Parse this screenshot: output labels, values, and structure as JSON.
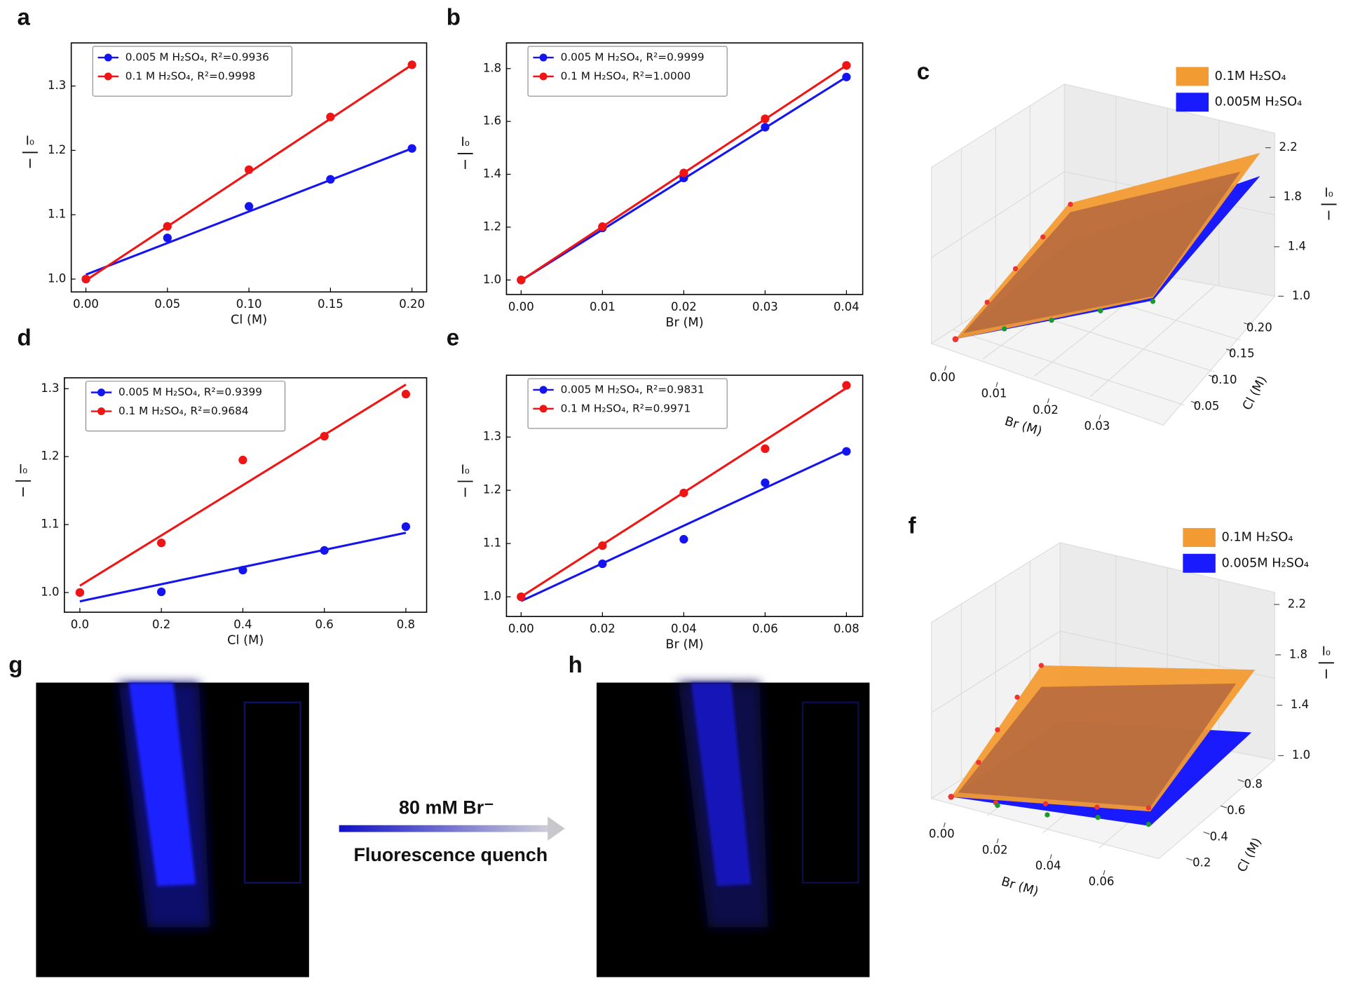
{
  "chart_data": [
    {
      "type": "scatter",
      "panel": "a",
      "xlabel": "Cl (M)",
      "ylabel_top": "I₀",
      "ylabel_bottom": "I",
      "x": [
        0,
        0.05,
        0.1,
        0.15,
        0.2
      ],
      "xlim": [
        -0.009,
        0.209
      ],
      "ylim": [
        0.98,
        1.367
      ],
      "xticks": [
        {
          "value": 0,
          "label": "0.00"
        },
        {
          "value": 0.05,
          "label": "0.05"
        },
        {
          "value": 0.1,
          "label": "0.10"
        },
        {
          "value": 0.15,
          "label": "0.15"
        },
        {
          "value": 0.2,
          "label": "0.20"
        }
      ],
      "yticks": [
        {
          "value": 1,
          "label": "1.0"
        },
        {
          "value": 1.1,
          "label": "1.1"
        },
        {
          "value": 1.2,
          "label": "1.2"
        },
        {
          "value": 1.3,
          "label": "1.3"
        }
      ],
      "legend": "upper left",
      "series": [
        {
          "name": "0.005 M H₂SO₄, R²=0.9936",
          "color": "#1414f0",
          "values": [
            1.0,
            1.064,
            1.113,
            1.155,
            1.203
          ],
          "fit": [
            1.007,
            1.203
          ]
        },
        {
          "name": "0.1 M H₂SO₄, R²=0.9998",
          "color": "#f01414",
          "values": [
            1.0,
            1.082,
            1.17,
            1.252,
            1.333
          ],
          "fit": [
            0.998,
            1.333
          ]
        }
      ]
    },
    {
      "type": "scatter",
      "panel": "b",
      "xlabel": "Br (M)",
      "ylabel_top": "I₀",
      "ylabel_bottom": "I",
      "x": [
        0,
        0.01,
        0.02,
        0.03,
        0.04
      ],
      "xlim": [
        -0.0018,
        0.042
      ],
      "ylim": [
        0.945,
        1.897
      ],
      "xticks": [
        {
          "value": 0,
          "label": "0.00"
        },
        0.01,
        0.02,
        0.03,
        0.04
      ],
      "yticks": [
        {
          "value": 1,
          "label": "1.0"
        },
        1.2,
        1.4,
        1.6,
        1.8
      ],
      "legend": "upper left",
      "series": [
        {
          "name": "0.005 M H₂SO₄, R²=0.9999",
          "color": "#1414f0",
          "values": [
            1.0,
            1.197,
            1.386,
            1.578,
            1.768
          ],
          "fit": [
            0.998,
            1.768
          ]
        },
        {
          "name": "0.1 M H₂SO₄, R²=1.0000",
          "color": "#f01414",
          "values": [
            1.0,
            1.202,
            1.405,
            1.61,
            1.812
          ],
          "fit": [
            0.998,
            1.812
          ]
        }
      ]
    },
    {
      "type": "surface3d",
      "panel": "c",
      "xlabel": "Br (M)",
      "ylabel": "Cl (M)",
      "zlabel_top": "I₀",
      "zlabel_bottom": "I",
      "xlim": [
        0,
        0.04
      ],
      "ylim": [
        0,
        0.2
      ],
      "zlim": [
        1.0,
        2.2
      ],
      "xticks": [
        {
          "value": 0,
          "label": "0.00"
        },
        0.01,
        0.02,
        0.03
      ],
      "yticks": [
        0.05,
        {
          "value": 0.1,
          "label": "0.10"
        },
        0.15,
        {
          "value": 0.2,
          "label": "0.20"
        }
      ],
      "zticks": [
        {
          "value": 1,
          "label": "1.0"
        },
        1.4,
        1.8,
        2.2
      ],
      "series": [
        {
          "name": "0.1M H₂SO₄",
          "color": "#f39b33"
        },
        {
          "name": "0.005M H₂SO₄",
          "color": "#1a1aff"
        }
      ]
    },
    {
      "type": "scatter",
      "panel": "d",
      "xlabel": "Cl (M)",
      "ylabel_top": "I₀",
      "ylabel_bottom": "I",
      "x": [
        0,
        0.2,
        0.4,
        0.6,
        0.8
      ],
      "xlim": [
        -0.038,
        0.851
      ],
      "ylim": [
        0.971,
        1.316
      ],
      "xticks": [
        {
          "value": 0,
          "label": "0.0"
        },
        0.2,
        0.4,
        0.6,
        0.8
      ],
      "yticks": [
        {
          "value": 1,
          "label": "1.0"
        },
        1.1,
        1.2,
        1.3
      ],
      "legend": "upper left",
      "series": [
        {
          "name": "0.005 M H₂SO₄, R²=0.9399",
          "color": "#1414f0",
          "values": [
            1.0,
            1.001,
            1.033,
            1.062,
            1.097
          ],
          "fit": [
            0.987,
            1.088
          ]
        },
        {
          "name": "0.1 M H₂SO₄, R²=0.9684",
          "color": "#f01414",
          "values": [
            1.0,
            1.073,
            1.195,
            1.23,
            1.292
          ],
          "fit": [
            1.01,
            1.306
          ]
        }
      ]
    },
    {
      "type": "scatter",
      "panel": "e",
      "xlabel": "Br (M)",
      "ylabel_top": "I₀",
      "ylabel_bottom": "I",
      "x": [
        0,
        0.02,
        0.04,
        0.06,
        0.08
      ],
      "xlim": [
        -0.0036,
        0.084
      ],
      "ylim": [
        0.963,
        1.416
      ],
      "xticks": [
        {
          "value": 0,
          "label": "0.00"
        },
        0.02,
        0.04,
        0.06,
        0.08
      ],
      "yticks": [
        {
          "value": 1,
          "label": "1.0"
        },
        1.1,
        1.2,
        1.3
      ],
      "legend": "upper left",
      "series": [
        {
          "name": "0.005 M H₂SO₄, R²=0.9831",
          "color": "#1414f0",
          "values": [
            1.0,
            1.062,
            1.108,
            1.214,
            1.273
          ],
          "fit": [
            0.992,
            1.275
          ]
        },
        {
          "name": "0.1 M H₂SO₄, R²=0.9971",
          "color": "#f01414",
          "values": [
            1.0,
            1.096,
            1.195,
            1.278,
            1.397
          ],
          "fit": [
            1.0,
            1.392
          ]
        }
      ]
    },
    {
      "type": "surface3d",
      "panel": "f",
      "xlabel": "Br (M)",
      "ylabel": "Cl (M)",
      "zlabel_top": "I₀",
      "zlabel_bottom": "I",
      "xlim": [
        0,
        0.08
      ],
      "ylim": [
        0,
        0.8
      ],
      "zlim": [
        1.0,
        2.2
      ],
      "xticks": [
        {
          "value": 0,
          "label": "0.00"
        },
        0.02,
        0.04,
        0.06
      ],
      "yticks": [
        0.2,
        0.4,
        0.6,
        0.8
      ],
      "zticks": [
        {
          "value": 1,
          "label": "1.0"
        },
        1.4,
        1.8,
        2.2
      ],
      "series": [
        {
          "name": "0.1M H₂SO₄",
          "color": "#f39b33"
        },
        {
          "name": "0.005M H₂SO₄",
          "color": "#1a1aff"
        }
      ]
    }
  ],
  "image_panels": [
    {
      "panel": "g"
    },
    {
      "panel": "h"
    }
  ],
  "arrow_label": "80 mM Br⁻",
  "arrow_caption": "Fluorescence quench"
}
